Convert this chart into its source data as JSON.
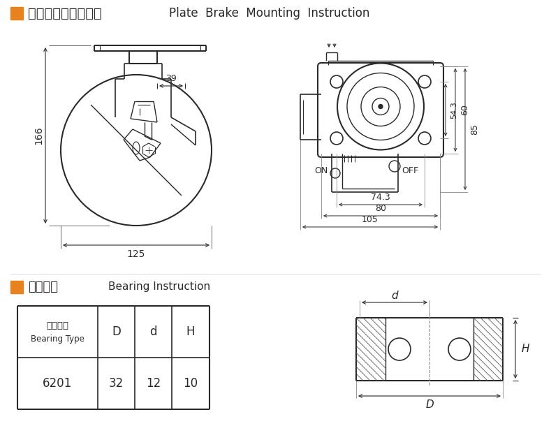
{
  "bg_color": "#ffffff",
  "line_color": "#2a2a2a",
  "orange_color": "#E8821E",
  "title1_cn": "平顶刹车安装尺寸图",
  "title1_en": "Plate  Brake  Mounting  Instruction",
  "title2_cn": "轴承说明",
  "title2_en": "Bearing Instruction",
  "dim_166": "166",
  "dim_125": "125",
  "dim_39": "39",
  "dim_54_3": "54.3",
  "dim_60": "60",
  "dim_85": "85",
  "dim_74_3": "74.3",
  "dim_80": "80",
  "dim_105": "105",
  "dim_ON": "ON",
  "dim_OFF": "OFF",
  "table_row": [
    "6201",
    "32",
    "12",
    "10"
  ],
  "dim_d": "d",
  "dim_D": "D",
  "dim_H": "H"
}
